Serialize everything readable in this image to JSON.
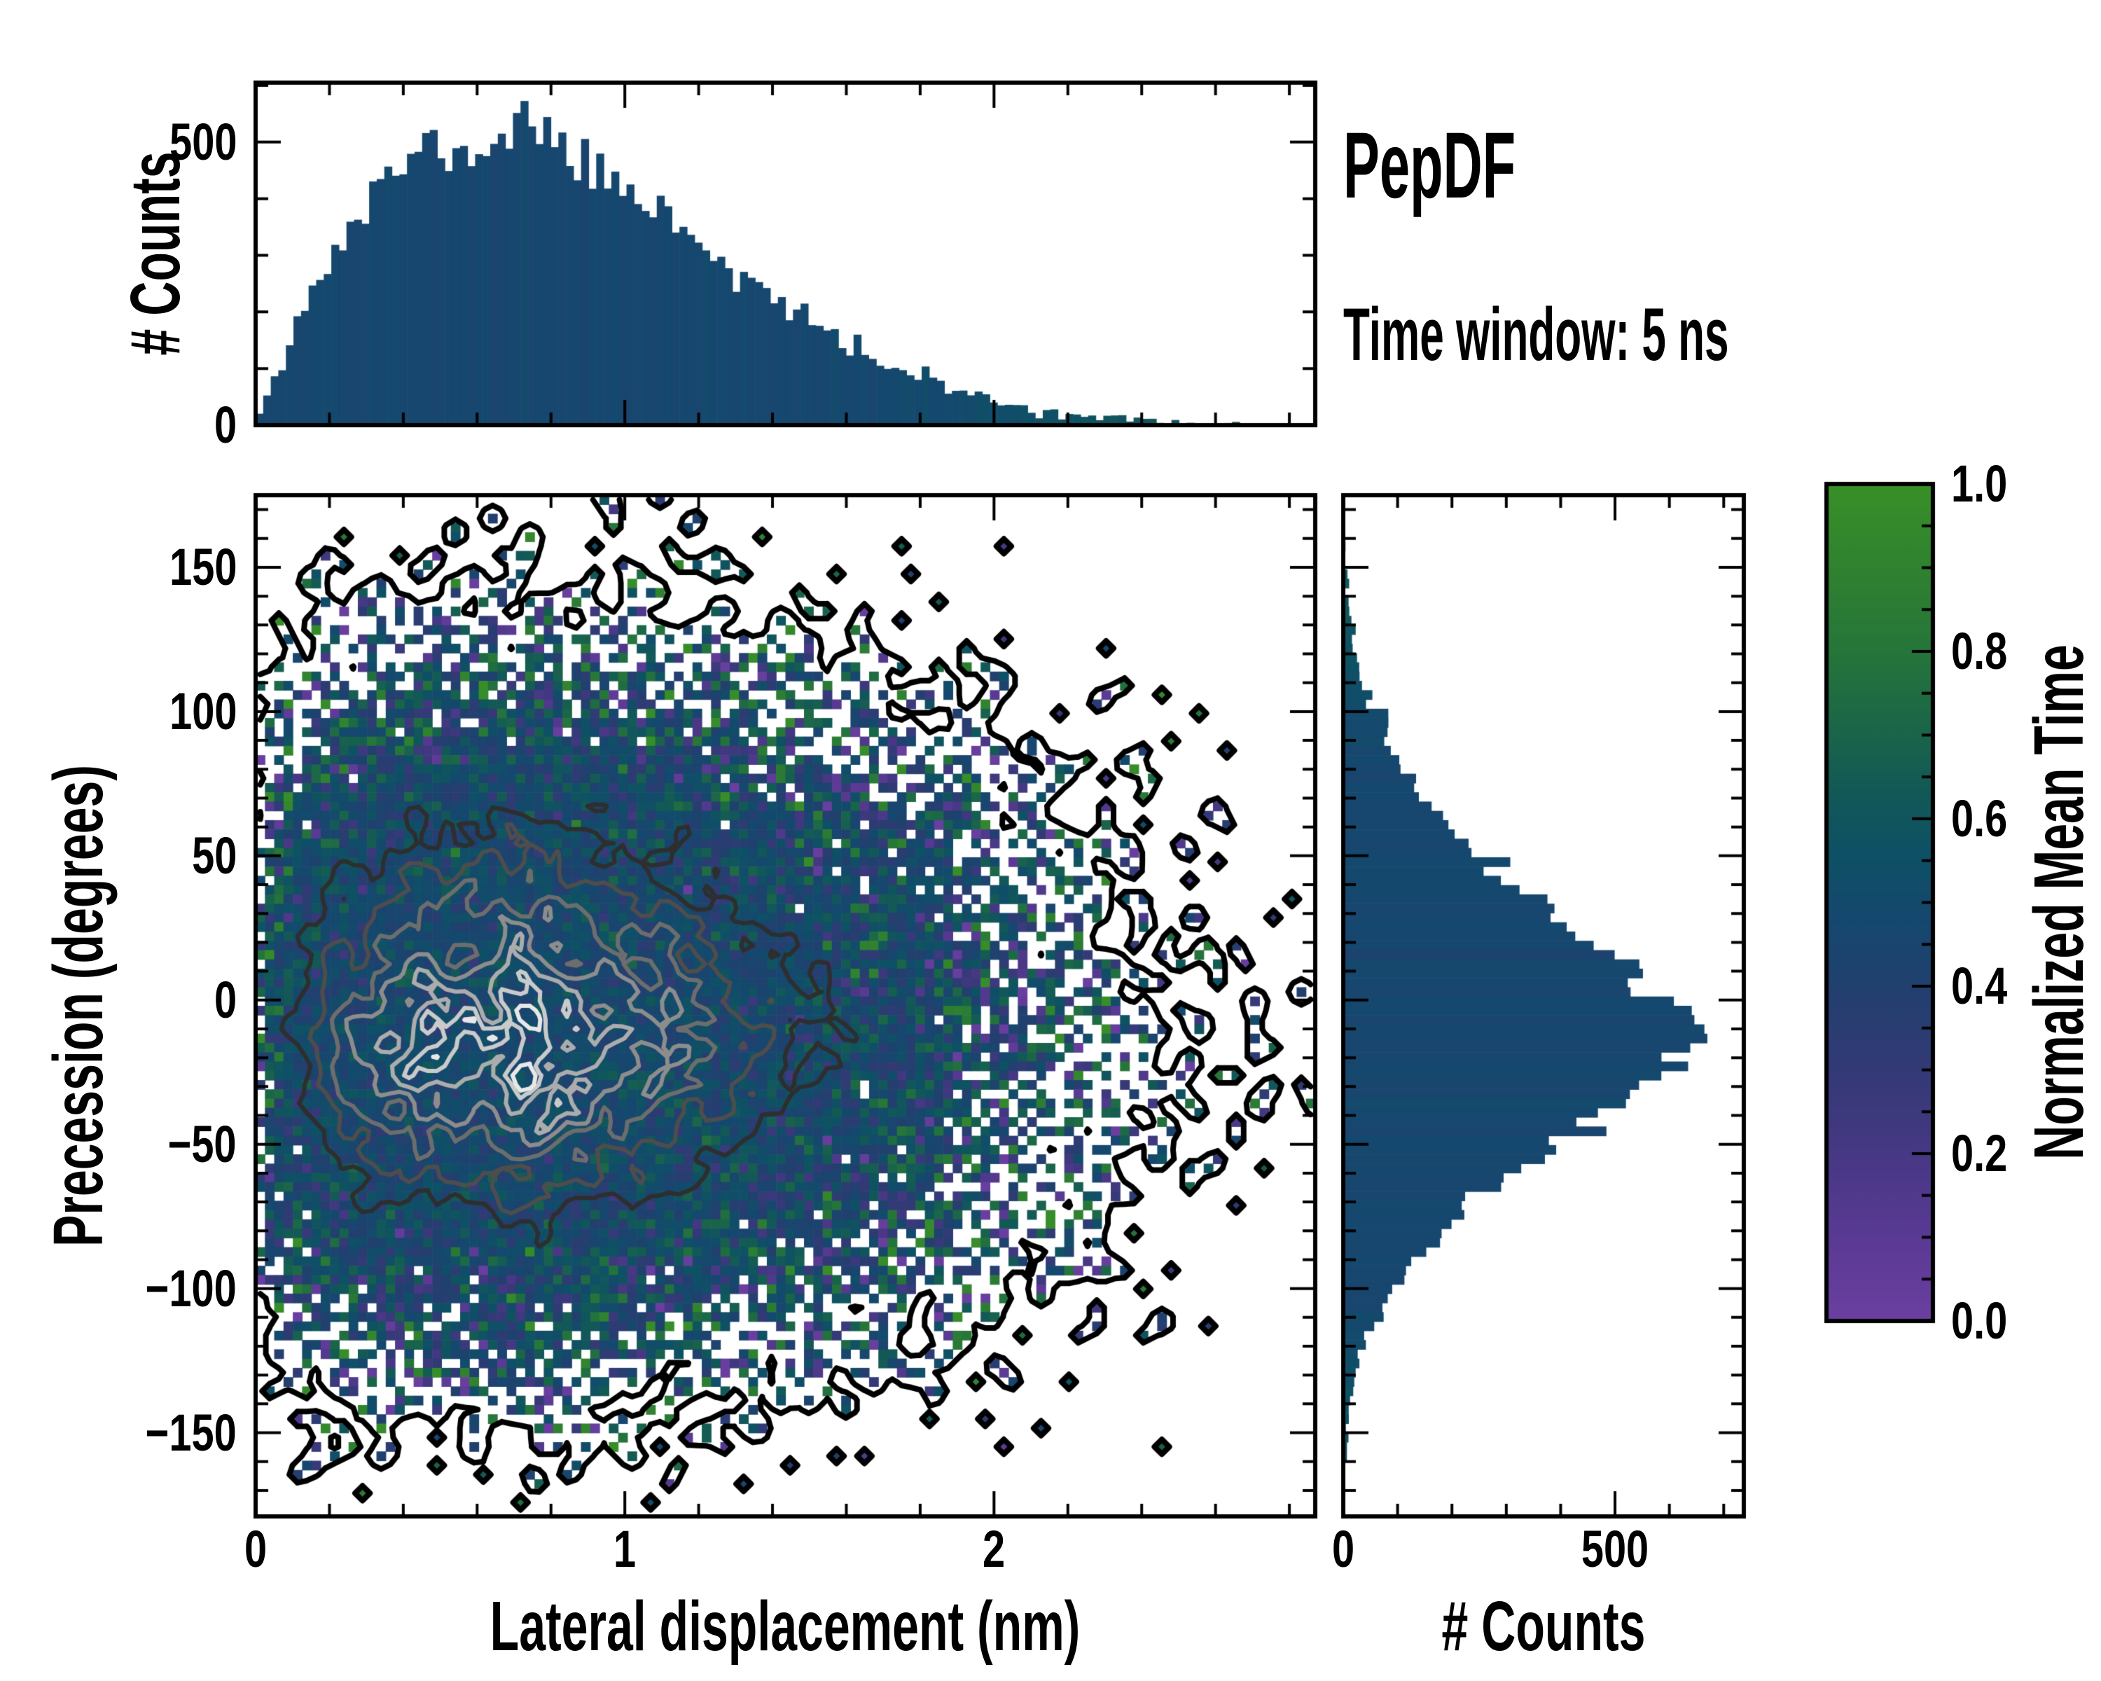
{
  "annotation": {
    "title": "PepDF",
    "subtitle": "Time window: 5 ns"
  },
  "axes": {
    "top_hist": {
      "ylabel": "# Counts",
      "yticks": [
        {
          "value": 500,
          "label": "500"
        },
        {
          "value": 0,
          "label": "0"
        }
      ]
    },
    "main": {
      "xlabel": "Lateral displacement (nm)",
      "ylabel": "Precession (degrees)",
      "xticks": [
        {
          "value": 0,
          "label": "0"
        },
        {
          "value": 1,
          "label": "1"
        },
        {
          "value": 2,
          "label": "2"
        }
      ],
      "yticks": [
        {
          "value": 150,
          "label": "150"
        },
        {
          "value": 100,
          "label": "100"
        },
        {
          "value": 50,
          "label": "50"
        },
        {
          "value": 0,
          "label": "0"
        },
        {
          "value": -50,
          "label": "−50"
        },
        {
          "value": -100,
          "label": "−100"
        },
        {
          "value": -150,
          "label": "−150"
        }
      ]
    },
    "right_hist": {
      "xlabel": "# Counts",
      "xticks": [
        {
          "value": 0,
          "label": "0"
        },
        {
          "value": 500,
          "label": "500"
        }
      ]
    },
    "colorbar": {
      "label": "Normalized Mean Time",
      "ticks": [
        {
          "value": 1.0,
          "label": "1.0"
        },
        {
          "value": 0.8,
          "label": "0.8"
        },
        {
          "value": 0.6,
          "label": "0.6"
        },
        {
          "value": 0.4,
          "label": "0.4"
        },
        {
          "value": 0.2,
          "label": "0.2"
        },
        {
          "value": 0.0,
          "label": "0.0"
        }
      ]
    }
  },
  "chart_data": [
    {
      "id": "top_histogram",
      "type": "bar",
      "role": "marginal histogram of lateral displacement",
      "ylabel": "# Counts",
      "xlim": [
        0,
        2.87
      ],
      "ylim": [
        0,
        605
      ],
      "yticks_major": [
        0,
        500
      ],
      "ytick_minor_step": 100,
      "xticks_major": [
        0,
        1,
        2
      ],
      "xtick_minor_step": 0.2,
      "n_bins": 140,
      "bar_color_base_value": 0.47,
      "tail_green_shift": 0.17,
      "peak": {
        "x_nm": 0.73,
        "count": 545
      },
      "envelope_x_nm": [
        0.0,
        0.05,
        0.1,
        0.15,
        0.2,
        0.25,
        0.3,
        0.35,
        0.4,
        0.45,
        0.5,
        0.55,
        0.6,
        0.65,
        0.7,
        0.75,
        0.8,
        0.85,
        0.9,
        0.95,
        1.0,
        1.1,
        1.2,
        1.3,
        1.4,
        1.5,
        1.6,
        1.7,
        1.8,
        1.9,
        2.0,
        2.1,
        2.2,
        2.3,
        2.4,
        2.5,
        2.6,
        2.7,
        2.87
      ],
      "envelope_counts": [
        10,
        90,
        165,
        235,
        290,
        340,
        380,
        430,
        465,
        480,
        500,
        470,
        480,
        505,
        530,
        545,
        505,
        480,
        450,
        435,
        420,
        385,
        330,
        272,
        222,
        180,
        142,
        110,
        85,
        60,
        42,
        30,
        20,
        13,
        8,
        5,
        3,
        2,
        1
      ],
      "seed": 11
    },
    {
      "id": "joint_heatmap",
      "type": "heatmap",
      "xlabel": "Lateral displacement (nm)",
      "ylabel": "Precession (degrees)",
      "color_meaning": "Normalized Mean Time per 2D bin",
      "xlim": [
        0,
        2.87
      ],
      "ylim": [
        -179,
        175
      ],
      "xticks_major": [
        0,
        1,
        2
      ],
      "xtick_minor_step": 0.2,
      "yticks_major": [
        -150,
        -100,
        -50,
        0,
        50,
        100,
        150
      ],
      "ytick_minor_step": 10,
      "grid": {
        "nx": 114,
        "ny": 110
      },
      "center": {
        "x_nm": 0.7,
        "y_deg": -9
      },
      "peak_bin_count": 26,
      "value_center": 0.48,
      "value_noise": {
        "base_sd": 0.045,
        "low_count_sd": 0.48
      },
      "contours": {
        "outer_level": 0.15,
        "outer_color": "#000000",
        "outer_width": 8,
        "inner_levels": [
          8,
          11,
          14,
          17,
          20,
          22.5,
          24.5
        ],
        "inner_colors": [
          "#2e2e2e",
          "#4d4d4d",
          "#6d6d6d",
          "#8d8d8d",
          "#acacac",
          "#cacaca",
          "#e8e8e8"
        ],
        "inner_width": 6
      },
      "seed": 42
    },
    {
      "id": "right_histogram",
      "type": "bar",
      "orientation": "horizontal",
      "role": "marginal histogram of precession angle",
      "xlabel": "# Counts",
      "xlim": [
        0,
        737
      ],
      "ylim": [
        -179,
        175
      ],
      "xticks_major": [
        0,
        500
      ],
      "xtick_minor_step": 100,
      "ytick_minor_step": 10,
      "n_bins": 110,
      "bar_color_base_value": 0.47,
      "tail_green_shift": 0.15,
      "peak": {
        "y_deg": -10,
        "count": 680
      },
      "envelope_y_deg": [
        175,
        160,
        150,
        140,
        130,
        120,
        110,
        100,
        90,
        80,
        70,
        60,
        50,
        40,
        30,
        20,
        10,
        0,
        -10,
        -20,
        -30,
        -40,
        -50,
        -60,
        -70,
        -80,
        -90,
        -100,
        -110,
        -120,
        -130,
        -140,
        -150,
        -160,
        -170,
        -179
      ],
      "envelope_counts": [
        0,
        2,
        4,
        8,
        14,
        24,
        38,
        58,
        85,
        120,
        160,
        215,
        265,
        325,
        390,
        455,
        515,
        575,
        655,
        610,
        545,
        470,
        395,
        325,
        255,
        195,
        145,
        100,
        62,
        38,
        22,
        12,
        6,
        3,
        1,
        0
      ],
      "seed": 77
    },
    {
      "id": "colorbar",
      "type": "colorbar",
      "label": "Normalized Mean Time",
      "range": [
        0.0,
        1.0
      ],
      "ticks_major": [
        0.0,
        0.2,
        0.4,
        0.6,
        0.8,
        1.0
      ],
      "minor_tick_step": 0.05,
      "gradient_stops": [
        [
          0.0,
          "#6b3fa0"
        ],
        [
          0.1,
          "#5a3a94"
        ],
        [
          0.2,
          "#473884"
        ],
        [
          0.3,
          "#333a76"
        ],
        [
          0.4,
          "#21406e"
        ],
        [
          0.48,
          "#15486e"
        ],
        [
          0.56,
          "#0e5165"
        ],
        [
          0.64,
          "#135a55"
        ],
        [
          0.72,
          "#1c6847"
        ],
        [
          0.8,
          "#26753a"
        ],
        [
          0.9,
          "#308230"
        ],
        [
          1.0,
          "#389027"
        ]
      ]
    }
  ]
}
